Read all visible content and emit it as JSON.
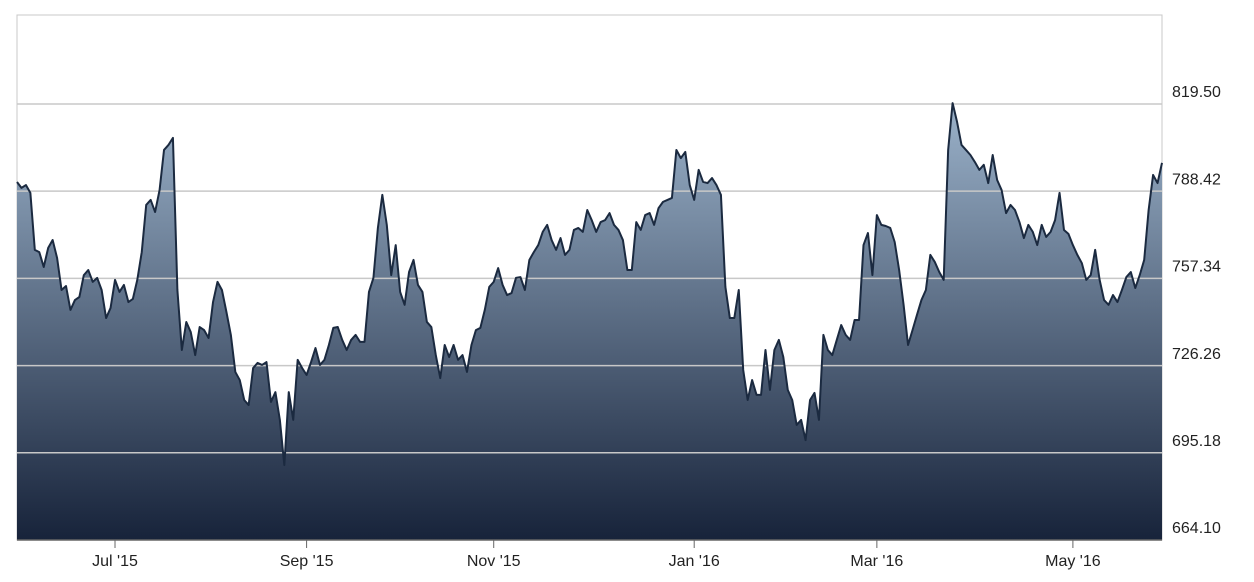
{
  "chart_data": {
    "type": "area",
    "categories": [
      null,
      null,
      null,
      null,
      null,
      null,
      null,
      null,
      null,
      null,
      null,
      null,
      null,
      null,
      null,
      null,
      null,
      null,
      null,
      null,
      null,
      null,
      "Jul '15",
      null,
      null,
      null,
      null,
      null,
      null,
      null,
      null,
      null,
      null,
      null,
      null,
      null,
      null,
      null,
      null,
      null,
      null,
      null,
      null,
      null,
      null,
      null,
      null,
      null,
      null,
      null,
      null,
      null,
      null,
      null,
      null,
      null,
      null,
      null,
      null,
      null,
      null,
      null,
      null,
      null,
      null,
      "Sep '15",
      null,
      null,
      null,
      null,
      null,
      null,
      null,
      null,
      null,
      null,
      null,
      null,
      null,
      null,
      null,
      null,
      null,
      null,
      null,
      null,
      null,
      null,
      null,
      null,
      null,
      null,
      null,
      null,
      null,
      null,
      null,
      null,
      null,
      null,
      null,
      null,
      null,
      null,
      null,
      null,
      null,
      "Nov '15",
      null,
      null,
      null,
      null,
      null,
      null,
      null,
      null,
      null,
      null,
      null,
      null,
      null,
      null,
      null,
      null,
      null,
      null,
      null,
      null,
      null,
      null,
      null,
      null,
      null,
      null,
      null,
      null,
      null,
      null,
      null,
      null,
      null,
      null,
      null,
      null,
      null,
      null,
      null,
      null,
      null,
      null,
      null,
      null,
      "Jan '16",
      null,
      null,
      null,
      null,
      null,
      null,
      null,
      null,
      null,
      null,
      null,
      null,
      null,
      null,
      null,
      null,
      null,
      null,
      null,
      null,
      null,
      null,
      null,
      null,
      null,
      null,
      null,
      null,
      null,
      null,
      null,
      null,
      null,
      null,
      null,
      null,
      null,
      null,
      null,
      null,
      "Mar '16",
      null,
      null,
      null,
      null,
      null,
      null,
      null,
      null,
      null,
      null,
      null,
      null,
      null,
      null,
      null,
      null,
      null,
      null,
      null,
      null,
      null,
      null,
      null,
      null,
      null,
      null,
      null,
      null,
      null,
      null,
      null,
      null,
      null,
      null,
      null,
      null,
      null,
      null,
      null,
      null,
      null,
      null,
      null,
      "May '16",
      null,
      null,
      null,
      null,
      null,
      null,
      null,
      null,
      null,
      null,
      null,
      null,
      null,
      null,
      null,
      null,
      null,
      null,
      null,
      null
    ],
    "values": [
      791.7,
      789.6,
      790.6,
      787.8,
      767.5,
      766.7,
      761.4,
      768.2,
      771.0,
      764.6,
      753.2,
      754.6,
      746.1,
      749.6,
      750.7,
      758.5,
      760.3,
      756.1,
      757.5,
      753.2,
      743.2,
      746.8,
      756.8,
      752.5,
      755.0,
      748.9,
      750.0,
      756.8,
      766.7,
      783.5,
      785.3,
      781.0,
      788.8,
      803.1,
      804.9,
      807.4,
      753.2,
      731.8,
      741.8,
      738.2,
      730.0,
      740.0,
      738.9,
      736.1,
      748.9,
      756.1,
      753.2,
      745.4,
      737.2,
      724.0,
      721.1,
      714.0,
      712.2,
      725.4,
      727.2,
      726.5,
      727.5,
      713.3,
      716.8,
      706.9,
      690.8,
      716.8,
      706.9,
      728.3,
      725.4,
      722.9,
      727.5,
      732.5,
      726.5,
      728.3,
      733.6,
      739.7,
      740.0,
      735.4,
      731.8,
      735.4,
      737.2,
      734.7,
      734.7,
      752.5,
      757.5,
      775.3,
      787.1,
      776.4,
      758.5,
      769.2,
      752.5,
      747.9,
      759.6,
      763.9,
      755.0,
      752.5,
      741.8,
      740.0,
      730.0,
      721.8,
      733.6,
      729.3,
      733.6,
      728.3,
      730.0,
      724.0,
      733.6,
      738.9,
      739.7,
      746.1,
      754.3,
      756.1,
      761.0,
      755.0,
      751.4,
      752.1,
      757.5,
      757.8,
      753.2,
      763.9,
      766.7,
      769.2,
      773.9,
      776.4,
      771.0,
      767.5,
      771.7,
      765.7,
      767.5,
      774.6,
      775.3,
      773.9,
      781.7,
      778.1,
      773.9,
      777.4,
      778.1,
      780.6,
      776.4,
      774.6,
      771.0,
      760.3,
      760.3,
      777.4,
      774.6,
      779.9,
      780.6,
      776.4,
      782.4,
      784.6,
      785.3,
      786.0,
      803.1,
      800.2,
      802.4,
      790.6,
      785.3,
      796.0,
      791.7,
      791.3,
      793.1,
      790.6,
      787.1,
      754.3,
      743.2,
      743.2,
      753.2,
      724.7,
      714.0,
      721.1,
      715.8,
      715.8,
      731.8,
      717.6,
      731.8,
      735.4,
      729.3,
      717.6,
      714.0,
      705.1,
      706.9,
      699.7,
      714.0,
      716.5,
      706.9,
      737.2,
      731.8,
      730.0,
      735.4,
      740.7,
      737.2,
      735.4,
      742.5,
      742.5,
      769.2,
      773.5,
      758.5,
      779.9,
      776.4,
      776.0,
      775.3,
      770.3,
      760.3,
      747.9,
      733.6,
      738.9,
      744.3,
      749.6,
      753.2,
      765.7,
      763.2,
      759.6,
      756.8,
      803.1,
      819.8,
      813.1,
      804.9,
      803.1,
      801.3,
      798.8,
      796.0,
      797.8,
      791.3,
      801.3,
      792.4,
      788.8,
      780.6,
      783.5,
      781.7,
      777.4,
      771.7,
      776.4,
      773.9,
      769.2,
      776.4,
      772.1,
      773.9,
      778.1,
      787.8,
      774.6,
      773.2,
      769.2,
      765.7,
      762.8,
      756.8,
      758.5,
      767.5,
      756.8,
      749.6,
      747.9,
      751.4,
      748.9,
      753.2,
      757.8,
      759.6,
      753.9,
      758.5,
      763.9,
      781.7,
      794.2,
      791.3,
      798.5
    ],
    "color": "#1b2a40",
    "fill_gradient": [
      "#9bb2ca",
      "#17233a"
    ],
    "ylim": [
      664.1,
      851.2
    ],
    "yticks": [
      {
        "value": 664.1,
        "label": "664.10"
      },
      695.18,
      726.26,
      757.34,
      788.42,
      {
        "value": 819.5,
        "label": "819.50"
      }
    ],
    "grid": true
  }
}
